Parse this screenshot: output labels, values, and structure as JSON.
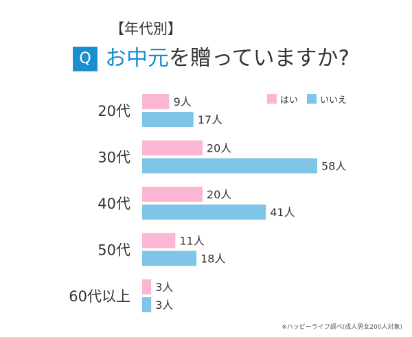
{
  "header": {
    "subtitle": "【年代別】",
    "badge": "Q",
    "title_accent": "お中元",
    "title_rest": "を贈っていますか?"
  },
  "colors": {
    "accent": "#1a8fd0",
    "yes": "#fbb6d3",
    "no": "#7ec5e8"
  },
  "chart_data": {
    "type": "bar",
    "orientation": "horizontal",
    "categories": [
      "20代",
      "30代",
      "40代",
      "50代",
      "60代以上"
    ],
    "series": [
      {
        "name": "はい",
        "color": "#fbb6d3",
        "values": [
          9,
          20,
          20,
          11,
          3
        ]
      },
      {
        "name": "いいえ",
        "color": "#7ec5e8",
        "values": [
          17,
          58,
          41,
          18,
          3
        ]
      }
    ],
    "unit": "人",
    "data_labels": [
      [
        "9人",
        "20人",
        "20人",
        "11人",
        "3人"
      ],
      [
        "17人",
        "58人",
        "41人",
        "18人",
        "3人"
      ]
    ],
    "xlim": [
      0,
      58
    ],
    "legend": "top-right",
    "grid": false
  },
  "footnote": "※ハッピーライフ調べ(成人男女200人対象)"
}
